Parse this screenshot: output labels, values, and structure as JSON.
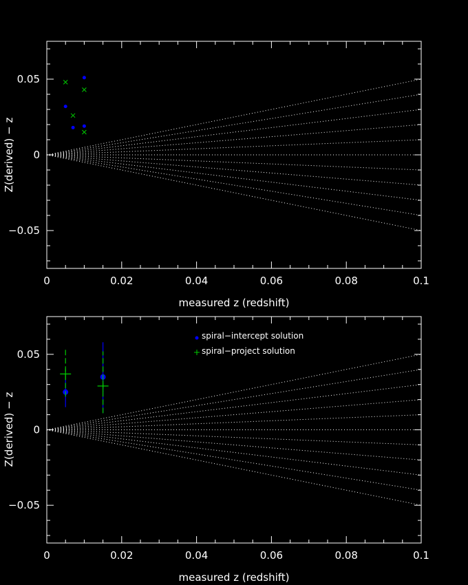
{
  "colors": {
    "background": "#000000",
    "axes": "#ffffff",
    "guide": "#ffffff",
    "series_blue": "#0000ff",
    "series_green": "#00cc00"
  },
  "chart_data": [
    {
      "type": "scatter",
      "xlabel": "measured z (redshift)",
      "ylabel": "Z(derived) − z",
      "xlim": [
        0,
        0.1
      ],
      "ylim": [
        -0.075,
        0.075
      ],
      "x_ticks": [
        0,
        0.02,
        0.04,
        0.06,
        0.08,
        0.1
      ],
      "x_tick_labels": [
        "0",
        "0.02",
        "0.04",
        "0.06",
        "0.08",
        "0.1"
      ],
      "y_ticks": [
        -0.05,
        0,
        0.05
      ],
      "y_tick_labels": [
        "−0.05",
        "0",
        "0.05"
      ],
      "guide_lines_slopes": [
        -0.5,
        -0.4,
        -0.3,
        -0.2,
        -0.1,
        0,
        0.1,
        0.2,
        0.3,
        0.4,
        0.5
      ],
      "series": [
        {
          "marker": "dot",
          "color": "#0000ff",
          "points": [
            [
              0.005,
              0.032
            ],
            [
              0.007,
              0.018
            ],
            [
              0.01,
              0.051
            ],
            [
              0.01,
              0.019
            ]
          ]
        },
        {
          "marker": "x",
          "color": "#00cc00",
          "points": [
            [
              0.005,
              0.048
            ],
            [
              0.007,
              0.026
            ],
            [
              0.01,
              0.043
            ],
            [
              0.01,
              0.015
            ]
          ]
        }
      ]
    },
    {
      "type": "scatter",
      "xlabel": "measured z (redshift)",
      "ylabel": "Z(derived) − z",
      "xlim": [
        0,
        0.1
      ],
      "ylim": [
        -0.075,
        0.075
      ],
      "x_ticks": [
        0,
        0.02,
        0.04,
        0.06,
        0.08,
        0.1
      ],
      "x_tick_labels": [
        "0",
        "0.02",
        "0.04",
        "0.06",
        "0.08",
        "0.1"
      ],
      "y_ticks": [
        -0.05,
        0,
        0.05
      ],
      "y_tick_labels": [
        "−0.05",
        "0",
        "0.05"
      ],
      "guide_lines_slopes": [
        -0.5,
        -0.4,
        -0.3,
        -0.2,
        -0.1,
        0,
        0.1,
        0.2,
        0.3,
        0.4,
        0.5
      ],
      "legend_position": "top-center",
      "series": [
        {
          "name": "spiral−intercept solution",
          "marker": "dot",
          "color": "#0000ff",
          "points": [
            {
              "x": 0.005,
              "y": 0.025,
              "yerr_low": 0.015,
              "yerr_high": 0.034
            },
            {
              "x": 0.015,
              "y": 0.035,
              "yerr_low": 0.011,
              "yerr_high": 0.058
            }
          ]
        },
        {
          "name": "spiral−project solution",
          "marker": "plus",
          "color": "#00cc00",
          "points": [
            {
              "x": 0.005,
              "y": 0.037,
              "yerr_low": 0.022,
              "yerr_high": 0.053
            },
            {
              "x": 0.015,
              "y": 0.029,
              "yerr_low": 0.011,
              "yerr_high": 0.052
            }
          ]
        }
      ]
    }
  ]
}
